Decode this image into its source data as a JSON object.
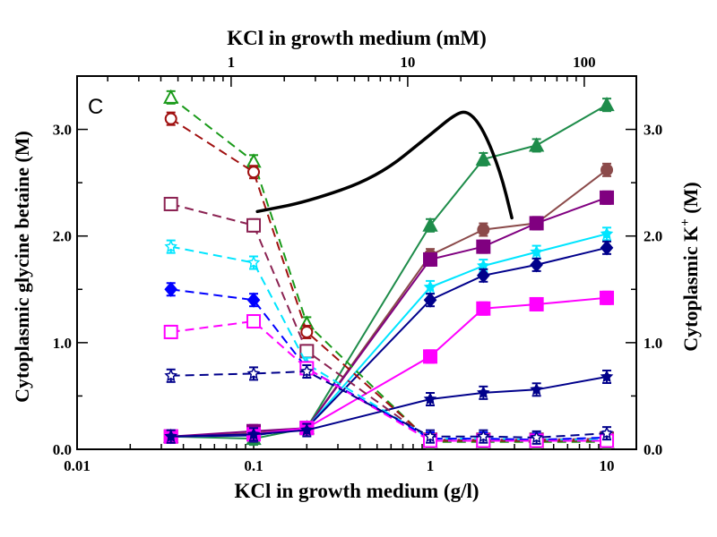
{
  "chart_data": {
    "type": "line",
    "panel_label": "C",
    "xlabel": "KCl in growth medium (g/l)",
    "x2label": "KCl in growth medium (mM)",
    "ylabel": "Cytoplasmic glycine betaine (M)",
    "y2label": {
      "text": "Cytoplasmic K",
      "sup": "+",
      "unit": " (M)"
    },
    "xscale": "log",
    "xlim": [
      0.01,
      14.7
    ],
    "ylim": [
      0,
      3.5
    ],
    "y2lim": [
      0,
      3.5
    ],
    "xticks": [
      {
        "v": 0.01,
        "label": "0.01"
      },
      {
        "v": 0.1,
        "label": "0.1"
      },
      {
        "v": 1,
        "label": "1"
      },
      {
        "v": 10,
        "label": "10"
      }
    ],
    "x2ticks": [
      {
        "v": 1,
        "label": "1"
      },
      {
        "v": 10,
        "label": "10"
      },
      {
        "v": 100,
        "label": "100"
      }
    ],
    "yticks": [
      {
        "v": 0,
        "label": "0.0"
      },
      {
        "v": 1,
        "label": "1.0"
      },
      {
        "v": 2,
        "label": "2.0"
      },
      {
        "v": 3,
        "label": "3.0"
      }
    ],
    "y2ticks": [
      {
        "v": 0,
        "label": "0.0"
      },
      {
        "v": 1,
        "label": "1.0"
      },
      {
        "v": 2,
        "label": "2.0"
      },
      {
        "v": 3,
        "label": "3.0"
      }
    ],
    "grid": false,
    "x": [
      0.034,
      0.1,
      0.2,
      1,
      2,
      4,
      10
    ],
    "series": [
      {
        "axis": "left",
        "style": "dashed",
        "marker": "triangle",
        "filled": false,
        "color": "#1a9a1a",
        "values": [
          3.3,
          2.7,
          1.18,
          0.07,
          0.07,
          0.07,
          0.07
        ]
      },
      {
        "axis": "left",
        "style": "dashed",
        "marker": "circle",
        "filled": false,
        "color": "#a01010",
        "values": [
          3.1,
          2.6,
          1.1,
          0.08,
          0.08,
          0.08,
          0.08
        ]
      },
      {
        "axis": "left",
        "style": "dashed",
        "marker": "square",
        "filled": false,
        "color": "#8b2252",
        "values": [
          2.3,
          2.1,
          0.92,
          0.09,
          0.09,
          0.09,
          0.1
        ]
      },
      {
        "axis": "left",
        "style": "dashed",
        "marker": "star",
        "filled": false,
        "color": "#00e5ff",
        "values": [
          1.9,
          1.75,
          0.8,
          0.1,
          0.1,
          0.09,
          0.09
        ]
      },
      {
        "axis": "left",
        "style": "dashed",
        "marker": "diamond",
        "filled": true,
        "color": "#0000ff",
        "values": [
          1.5,
          1.4,
          0.76,
          0.1,
          0.1,
          0.09,
          0.11
        ]
      },
      {
        "axis": "left",
        "style": "dashed",
        "marker": "square",
        "filled": false,
        "color": "#ff00ff",
        "values": [
          1.1,
          1.2,
          0.76,
          0.08,
          0.08,
          0.08,
          0.08
        ]
      },
      {
        "axis": "left",
        "style": "dashed",
        "marker": "star",
        "filled": false,
        "color": "#00008b",
        "values": [
          0.69,
          0.71,
          0.73,
          0.12,
          0.12,
          0.11,
          0.15
        ]
      },
      {
        "axis": "right",
        "style": "solid",
        "marker": "triangle",
        "filled": true,
        "color": "#1e8c4a",
        "values": [
          0.12,
          0.1,
          0.2,
          2.1,
          2.72,
          2.85,
          3.23
        ]
      },
      {
        "axis": "right",
        "style": "solid",
        "marker": "circle",
        "filled": true,
        "color": "#8b4a4a",
        "values": [
          0.12,
          0.15,
          0.2,
          1.82,
          2.06,
          2.12,
          2.62
        ]
      },
      {
        "axis": "right",
        "style": "solid",
        "marker": "square",
        "filled": true,
        "color": "#800080",
        "values": [
          0.12,
          0.17,
          0.2,
          1.78,
          1.9,
          2.12,
          2.36
        ]
      },
      {
        "axis": "right",
        "style": "solid",
        "marker": "star",
        "filled": true,
        "color": "#00e5ff",
        "values": [
          0.12,
          0.13,
          0.2,
          1.52,
          1.72,
          1.85,
          2.02
        ]
      },
      {
        "axis": "right",
        "style": "solid",
        "marker": "diamond",
        "filled": true,
        "color": "#00008b",
        "values": [
          0.12,
          0.13,
          0.2,
          1.4,
          1.63,
          1.73,
          1.89
        ]
      },
      {
        "axis": "right",
        "style": "solid",
        "marker": "square",
        "filled": true,
        "color": "#ff00ff",
        "values": [
          0.12,
          0.14,
          0.2,
          0.87,
          1.32,
          1.36,
          1.42
        ]
      },
      {
        "axis": "right",
        "style": "solid",
        "marker": "star",
        "filled": true,
        "color": "#00008b",
        "values": [
          0.12,
          0.14,
          0.18,
          0.47,
          0.53,
          0.56,
          0.68
        ]
      }
    ],
    "annotation_curve": {
      "color": "#000000",
      "points": [
        [
          0.105,
          2.23
        ],
        [
          0.2,
          2.32
        ],
        [
          0.5,
          2.55
        ],
        [
          1.0,
          2.95
        ],
        [
          1.4,
          3.15
        ],
        [
          1.65,
          3.17
        ],
        [
          2.0,
          3.0
        ],
        [
          2.5,
          2.6
        ],
        [
          2.9,
          2.17
        ]
      ]
    }
  }
}
